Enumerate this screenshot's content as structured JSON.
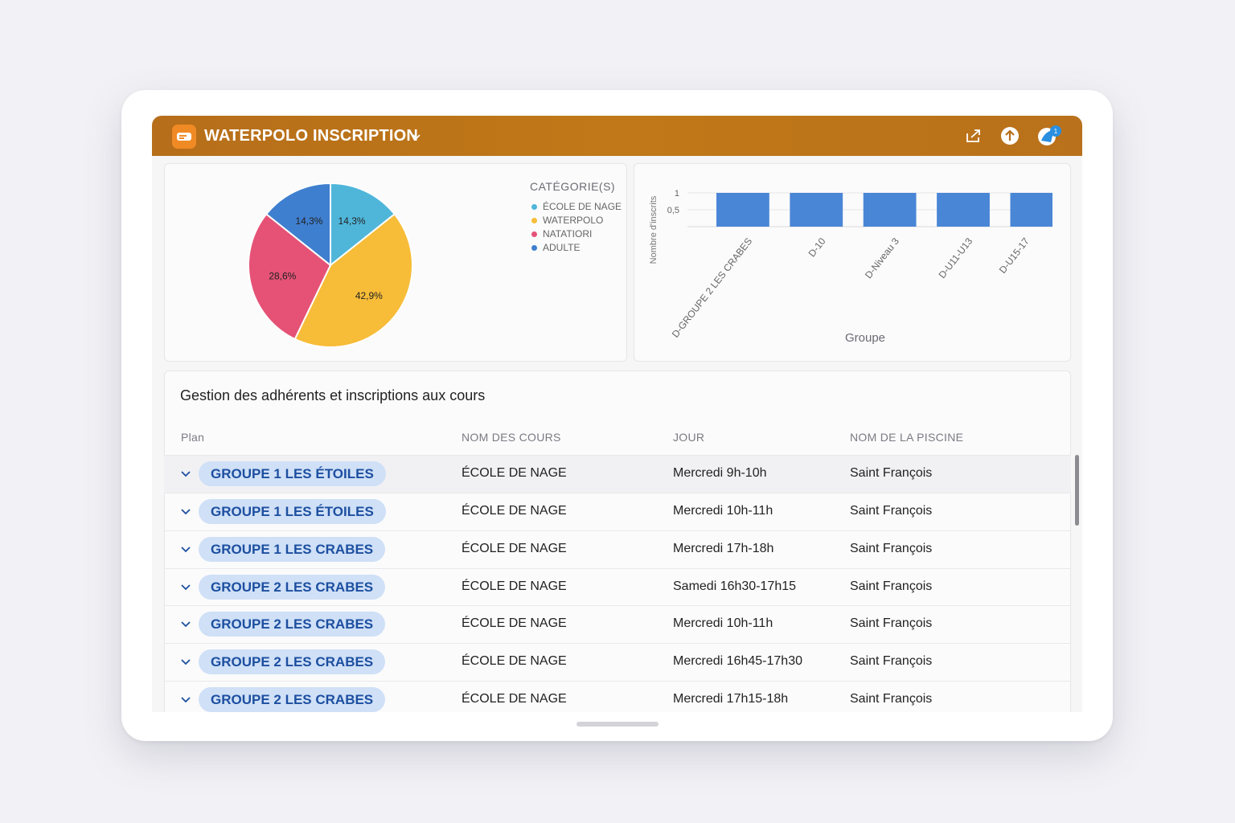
{
  "header": {
    "title": "WATERPOLO INSCRIPTION",
    "icons": [
      "share-icon",
      "upload-icon",
      "notification-icon"
    ],
    "badge": "1"
  },
  "pie": {
    "legend_title": "CATÉGORIE(S)",
    "legend": [
      {
        "label": "ÉCOLE DE NAGE",
        "color": "#4fb6da"
      },
      {
        "label": "WATERPOLO",
        "color": "#f7bc38"
      },
      {
        "label": "NATATIORI",
        "color": "#e55276"
      },
      {
        "label": "ADULTE",
        "color": "#3f7fcf"
      }
    ]
  },
  "chart_data": [
    {
      "type": "pie",
      "slices": [
        {
          "label": "14,3%",
          "value": 14.3,
          "color": "#4fb6da"
        },
        {
          "label": "42,9%",
          "value": 42.9,
          "color": "#f7bc38"
        },
        {
          "label": "28,6%",
          "value": 28.6,
          "color": "#e55276"
        },
        {
          "label": "14,3%",
          "value": 14.3,
          "color": "#3f7fcf"
        }
      ]
    },
    {
      "type": "bar",
      "categories": [
        "D-GROUPE 2 LES CRABES",
        "D-10",
        "D-Niveau 3",
        "D-U11-U13",
        "D-U15-17"
      ],
      "values": [
        1,
        1,
        1,
        1,
        1
      ],
      "yticks": [
        "1",
        "0,5"
      ],
      "ylim": [
        0,
        1
      ],
      "xlabel": "Groupe",
      "ylabel": "Nombre d'inscrits",
      "color": "#4a86d6"
    }
  ],
  "table": {
    "title": "Gestion des adhérents et inscriptions aux cours",
    "columns": [
      "Plan",
      "NOM DES COURS",
      "JOUR",
      "NOM DE LA PISCINE"
    ],
    "rows": [
      {
        "plan": "GROUPE 1 LES ÉTOILES",
        "course": "ÉCOLE DE NAGE",
        "day": "Mercredi 9h-10h",
        "pool": "Saint François"
      },
      {
        "plan": "GROUPE 1 LES ÉTOILES",
        "course": "ÉCOLE DE NAGE",
        "day": "Mercredi 10h-11h",
        "pool": "Saint François"
      },
      {
        "plan": "GROUPE 1 LES CRABES",
        "course": "ÉCOLE DE NAGE",
        "day": "Mercredi 17h-18h",
        "pool": "Saint François"
      },
      {
        "plan": "GROUPE 2 LES CRABES",
        "course": "ÉCOLE DE NAGE",
        "day": "Samedi 16h30-17h15",
        "pool": "Saint François"
      },
      {
        "plan": "GROUPE 2 LES CRABES",
        "course": "ÉCOLE DE NAGE",
        "day": "Mercredi 10h-11h",
        "pool": "Saint François"
      },
      {
        "plan": "GROUPE 2 LES CRABES",
        "course": "ÉCOLE DE NAGE",
        "day": "Mercredi 16h45-17h30",
        "pool": "Saint François"
      },
      {
        "plan": "GROUPE 2 LES CRABES",
        "course": "ÉCOLE DE NAGE",
        "day": "Mercredi 17h15-18h",
        "pool": "Saint François"
      }
    ]
  }
}
